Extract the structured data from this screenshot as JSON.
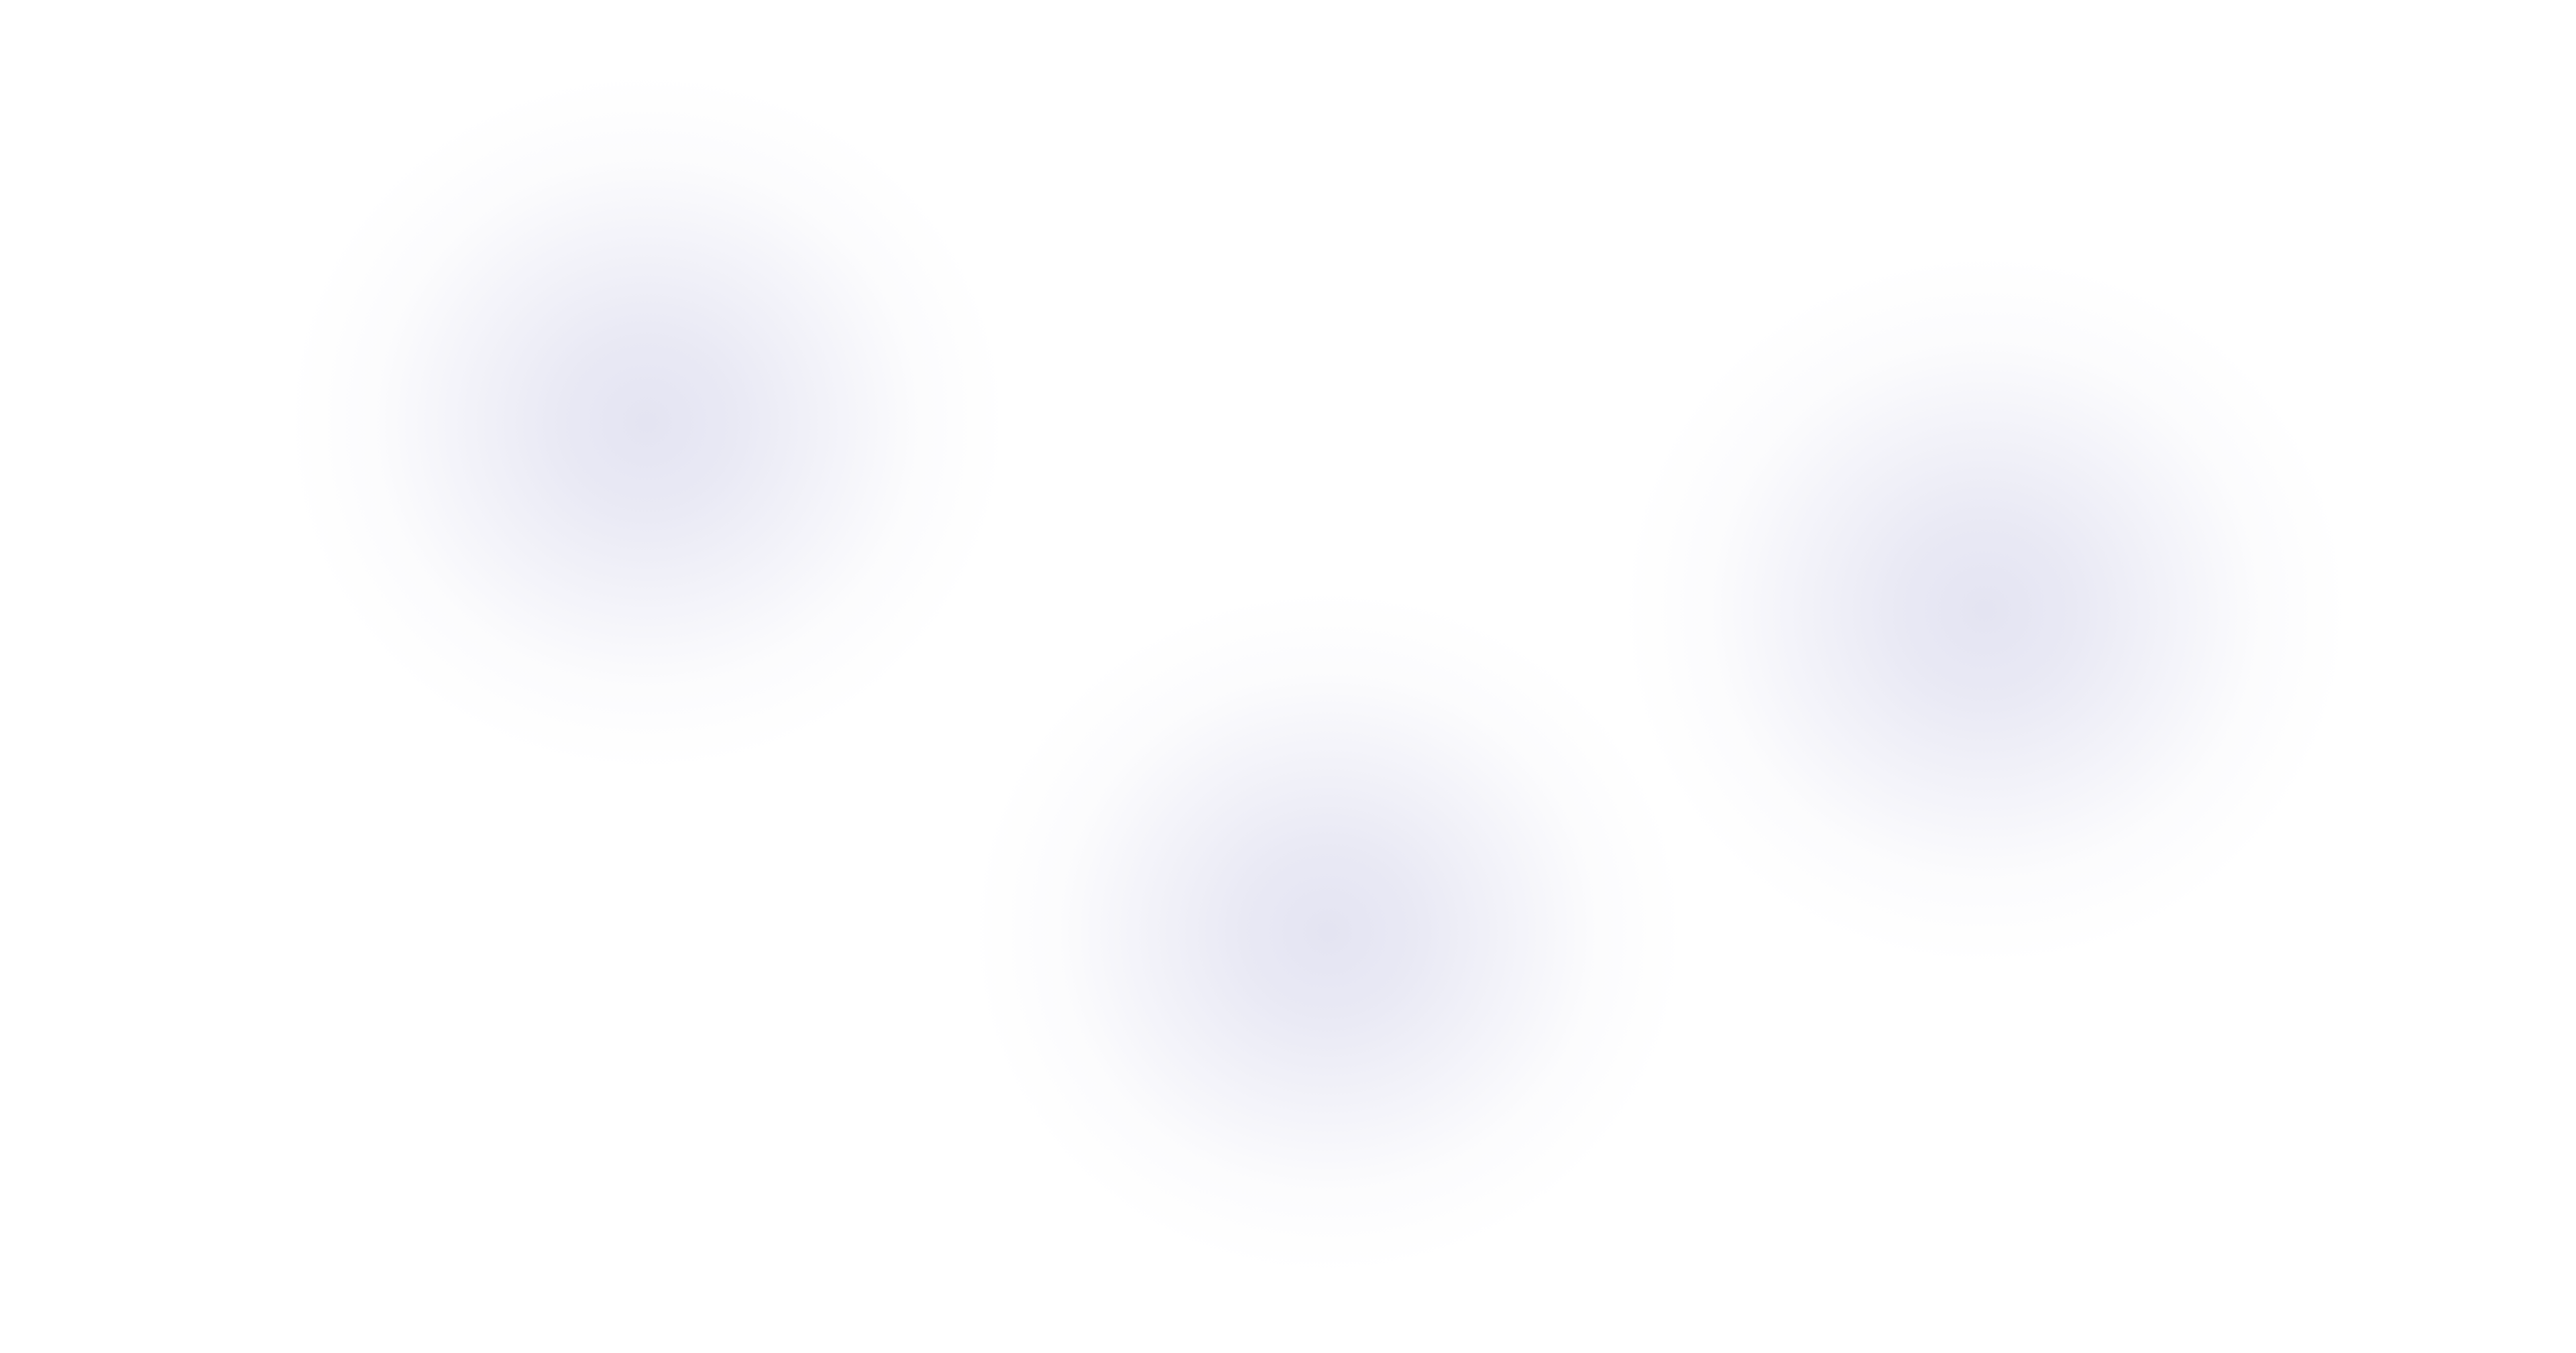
{
  "background": {
    "base_color": "#ffffff",
    "blob_color": "#e6e6f2"
  },
  "decorations": [
    {
      "name": "blurred-blob-top-left"
    },
    {
      "name": "blurred-blob-bottom-center"
    },
    {
      "name": "blurred-blob-right"
    }
  ]
}
